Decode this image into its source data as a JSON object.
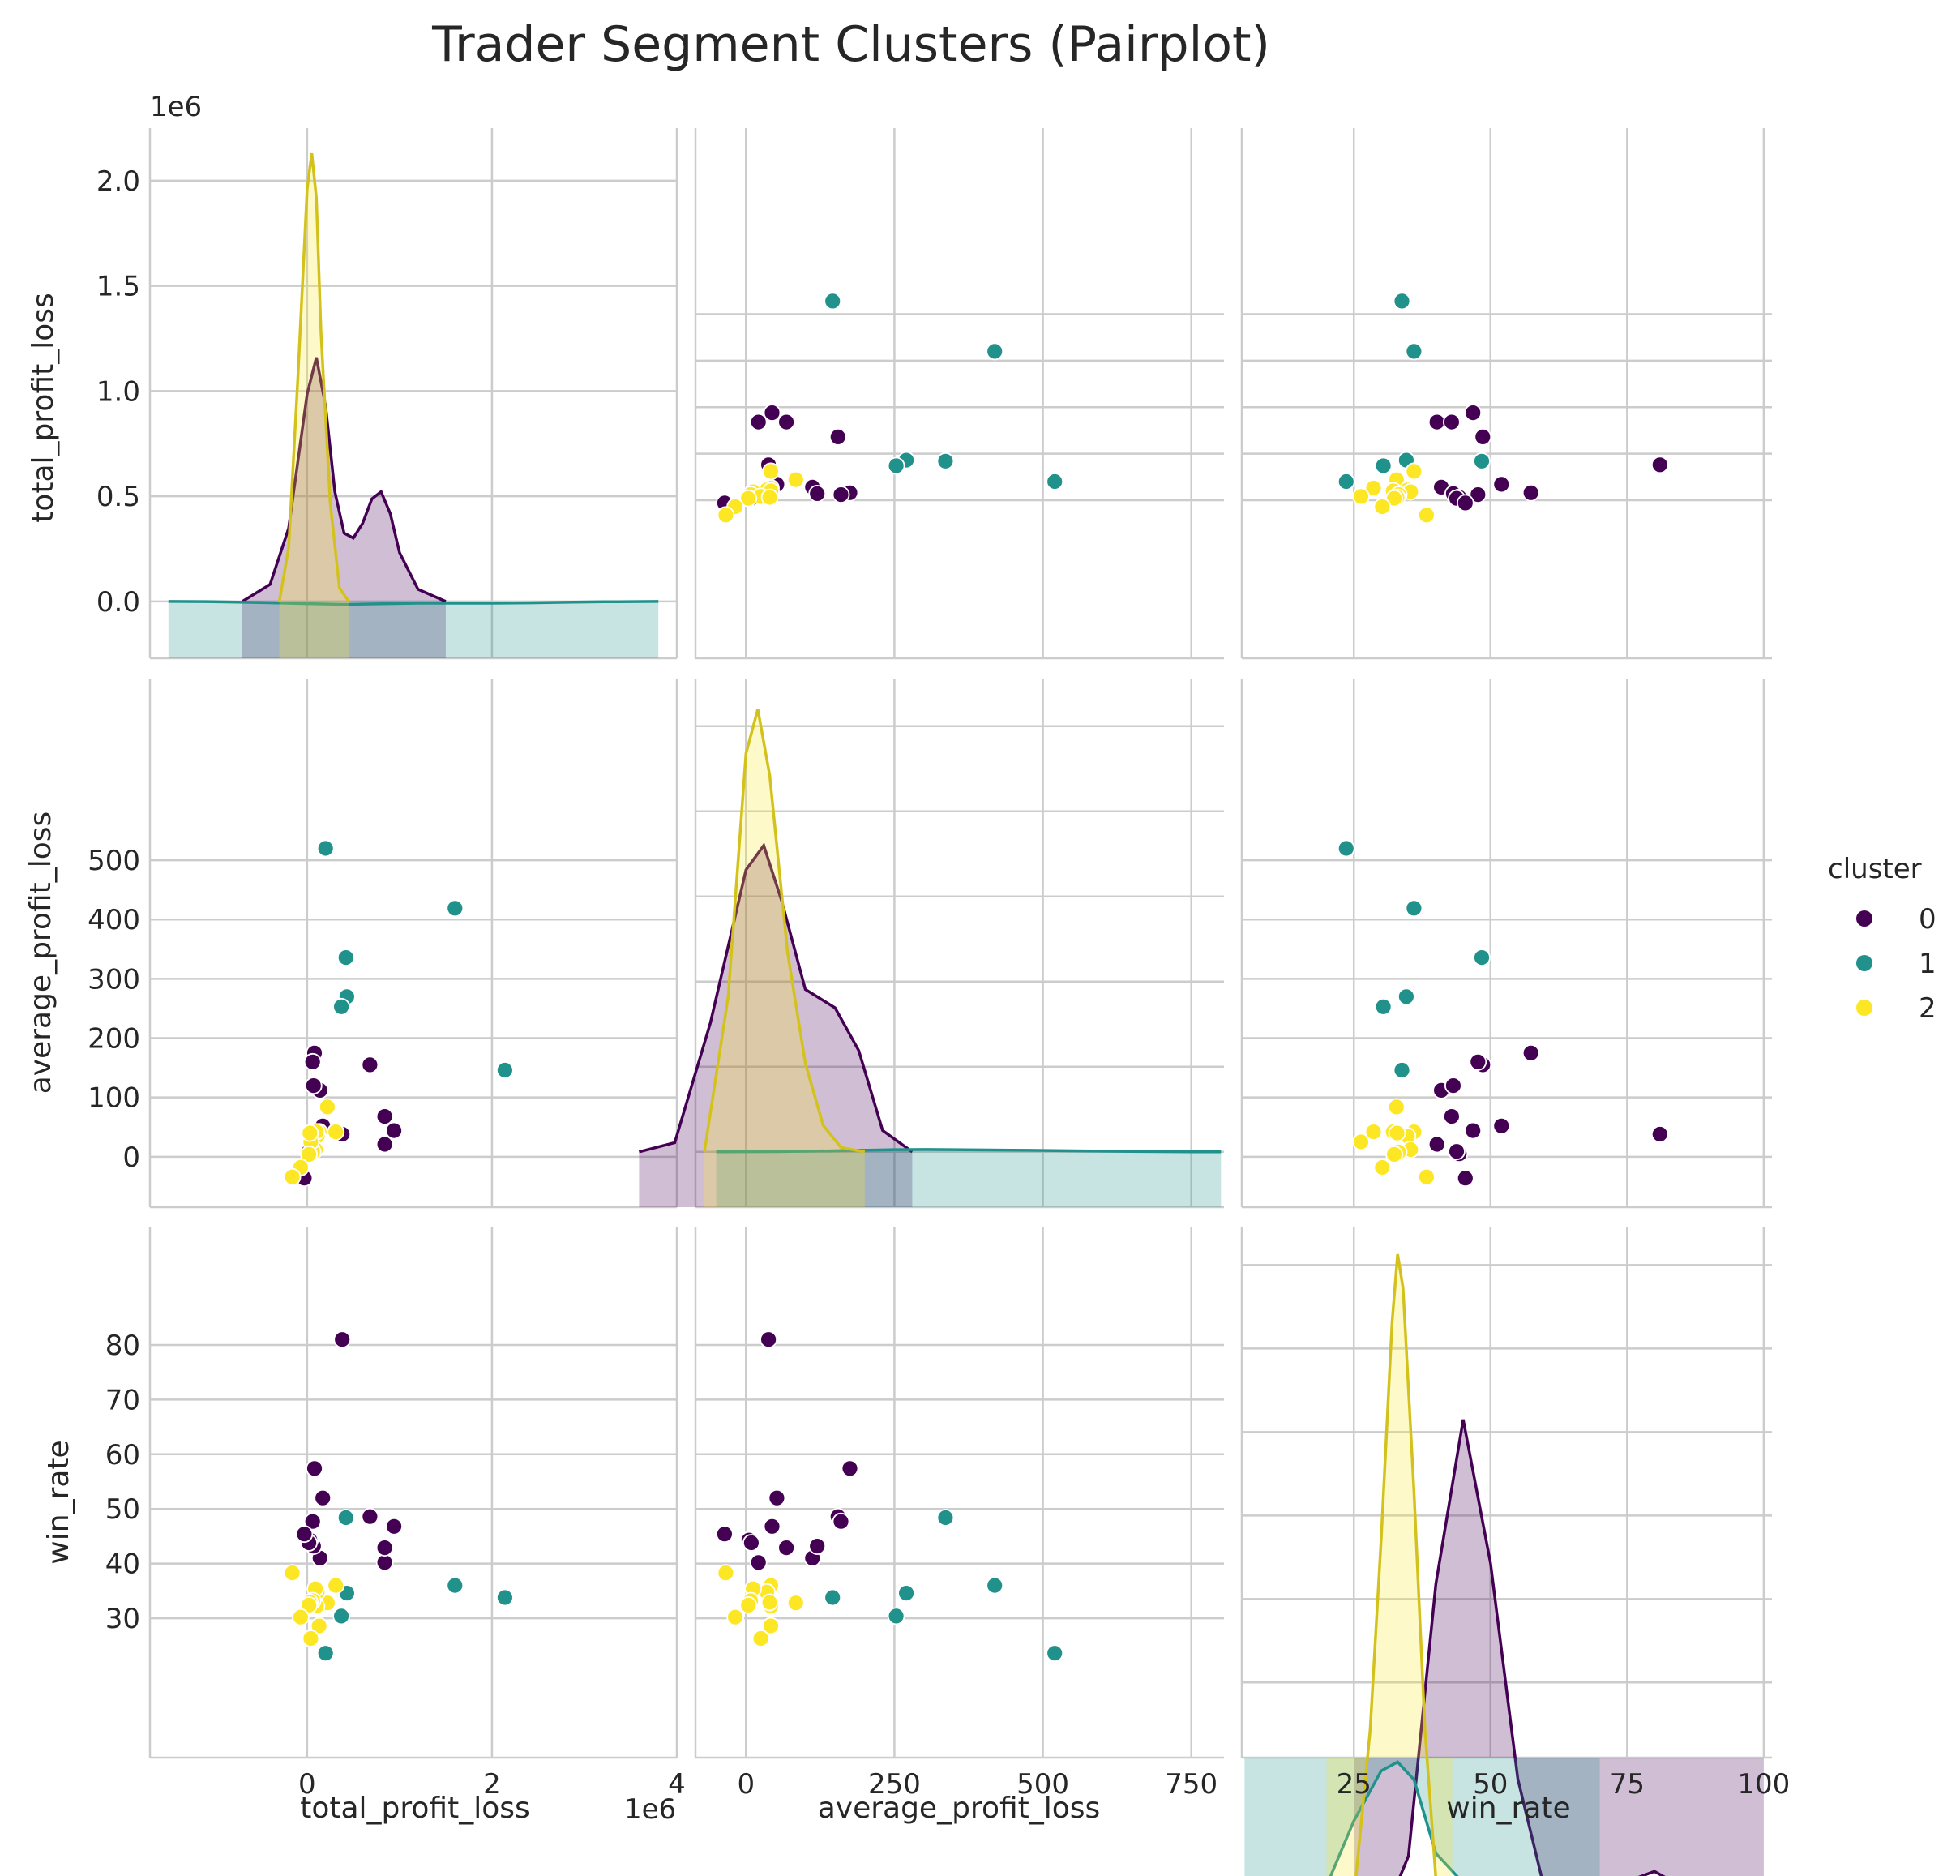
{
  "chart_data": {
    "type": "scatter",
    "subtype": "pairplot",
    "title": "Trader Segment Clusters (Pairplot)",
    "variables": [
      "total_profit_loss",
      "average_profit_loss",
      "win_rate"
    ],
    "axis_labels": {
      "total_profit_loss": "total_profit_loss",
      "average_profit_loss": "average_profit_loss",
      "win_rate": "win_rate"
    },
    "offset_text": "1e6",
    "ranges": {
      "total_profit_loss": [
        -1700000,
        4000000
      ],
      "average_profit_loss": [
        -85,
        805
      ],
      "win_rate": [
        4.5,
        101.5
      ]
    },
    "diag_y_ranges": {
      "total_profit_loss": [
        -270000,
        2250000
      ],
      "average_profit_loss": [
        -65,
        555
      ],
      "win_rate": [
        21,
        84.5
      ]
    },
    "ticks": {
      "total_profit_loss": {
        "values": [
          0,
          2000000,
          4000000
        ],
        "labels": [
          "0",
          "2",
          "4"
        ]
      },
      "total_profit_loss_y": {
        "values": [
          0,
          500000,
          1000000,
          1500000,
          2000000
        ],
        "labels": [
          "0.0",
          "0.5",
          "1.0",
          "1.5",
          "2.0"
        ]
      },
      "average_profit_loss": {
        "values": [
          0,
          250,
          500,
          750
        ],
        "labels": [
          "0",
          "250",
          "500",
          "750"
        ]
      },
      "average_profit_loss_y": {
        "values": [
          0,
          100,
          200,
          300,
          400,
          500
        ],
        "labels": [
          "0",
          "100",
          "200",
          "300",
          "400",
          "500"
        ]
      },
      "win_rate": {
        "values": [
          25,
          50,
          75,
          100
        ],
        "labels": [
          "25",
          "50",
          "75",
          "100"
        ]
      },
      "win_rate_y": {
        "values": [
          30,
          40,
          50,
          60,
          70,
          80
        ],
        "labels": [
          "30",
          "40",
          "50",
          "60",
          "70",
          "80"
        ]
      }
    },
    "grid": true,
    "legend": {
      "title": "cluster",
      "placement": "center-right"
    },
    "colors": {
      "0": "#440154",
      "1": "#21918c",
      "2": "#fde725"
    },
    "kde_line_colors": {
      "0": "#440154",
      "1": "#21918c",
      "2": "#d4c21c"
    },
    "series": [
      {
        "name": "0",
        "points": [
          {
            "total_profit_loss": 940000,
            "average_profit_loss": 44,
            "win_rate": 46.8
          },
          {
            "total_profit_loss": 840000,
            "average_profit_loss": 21,
            "win_rate": 40.2
          },
          {
            "total_profit_loss": 840000,
            "average_profit_loss": 68,
            "win_rate": 42.9
          },
          {
            "total_profit_loss": 680000,
            "average_profit_loss": 155,
            "win_rate": 48.6
          },
          {
            "total_profit_loss": 380000,
            "average_profit_loss": 38,
            "win_rate": 81.0
          },
          {
            "total_profit_loss": 170000,
            "average_profit_loss": 52,
            "win_rate": 52.0
          },
          {
            "total_profit_loss": 140000,
            "average_profit_loss": 112,
            "win_rate": 41.0
          },
          {
            "total_profit_loss": 80000,
            "average_profit_loss": 175,
            "win_rate": 57.4
          },
          {
            "total_profit_loss": 70000,
            "average_profit_loss": 120,
            "win_rate": 43.2
          },
          {
            "total_profit_loss": 60000,
            "average_profit_loss": 160,
            "win_rate": 47.7
          },
          {
            "total_profit_loss": 30000,
            "average_profit_loss": 5,
            "win_rate": 44.3
          },
          {
            "total_profit_loss": 20000,
            "average_profit_loss": 9,
            "win_rate": 43.8
          },
          {
            "total_profit_loss": -30000,
            "average_profit_loss": -36,
            "win_rate": 45.4
          }
        ]
      },
      {
        "name": "1",
        "points": [
          {
            "total_profit_loss": 2140000,
            "average_profit_loss": 146,
            "win_rate": 33.8
          },
          {
            "total_profit_loss": 1600000,
            "average_profit_loss": 419,
            "win_rate": 36.0
          },
          {
            "total_profit_loss": 430000,
            "average_profit_loss": 270,
            "win_rate": 34.6
          },
          {
            "total_profit_loss": 420000,
            "average_profit_loss": 336,
            "win_rate": 48.4
          },
          {
            "total_profit_loss": 370000,
            "average_profit_loss": 253,
            "win_rate": 30.4
          },
          {
            "total_profit_loss": 200000,
            "average_profit_loss": 520,
            "win_rate": 23.6
          }
        ]
      },
      {
        "name": "2",
        "points": [
          {
            "total_profit_loss": 310000,
            "average_profit_loss": 42,
            "win_rate": 36.0
          },
          {
            "total_profit_loss": 220000,
            "average_profit_loss": 84,
            "win_rate": 32.8
          },
          {
            "total_profit_loss": 130000,
            "average_profit_loss": 42,
            "win_rate": 28.6
          },
          {
            "total_profit_loss": 110000,
            "average_profit_loss": 35,
            "win_rate": 34.8
          },
          {
            "total_profit_loss": 100000,
            "average_profit_loss": 42,
            "win_rate": 32.2
          },
          {
            "total_profit_loss": 90000,
            "average_profit_loss": 12,
            "win_rate": 35.4
          },
          {
            "total_profit_loss": 60000,
            "average_profit_loss": 8,
            "win_rate": 33.2
          },
          {
            "total_profit_loss": 40000,
            "average_profit_loss": 25,
            "win_rate": 26.3
          },
          {
            "total_profit_loss": 30000,
            "average_profit_loss": 40,
            "win_rate": 32.9
          },
          {
            "total_profit_loss": 20000,
            "average_profit_loss": 4,
            "win_rate": 32.4
          },
          {
            "total_profit_loss": -70000,
            "average_profit_loss": -18,
            "win_rate": 30.2
          },
          {
            "total_profit_loss": -160000,
            "average_profit_loss": -34,
            "win_rate": 38.3
          }
        ]
      }
    ],
    "kde": {
      "total_profit_loss": [
        {
          "name": "0",
          "x": [
            -700000,
            -400000,
            -200000,
            0,
            100000,
            200000,
            300000,
            400000,
            500000,
            600000,
            700000,
            800000,
            900000,
            1000000,
            1200000,
            1500000
          ],
          "y": [
            0,
            0.07,
            0.3,
            0.85,
            1.0,
            0.8,
            0.45,
            0.28,
            0.26,
            0.32,
            0.42,
            0.45,
            0.36,
            0.2,
            0.05,
            0
          ]
        },
        {
          "name": "1",
          "x": [
            -1500000,
            -1000000,
            -500000,
            0,
            400000,
            800000,
            1200000,
            1600000,
            2000000,
            2400000,
            2800000,
            3200000,
            3800000
          ],
          "y": [
            0,
            0.015,
            0.06,
            0.13,
            0.17,
            0.14,
            0.1,
            0.1,
            0.1,
            0.08,
            0.045,
            0.02,
            0
          ]
        },
        {
          "name": "2",
          "x": [
            -300000,
            -200000,
            -100000,
            0,
            50000,
            100000,
            150000,
            250000,
            350000,
            450000
          ],
          "y": [
            0,
            0.12,
            0.5,
            0.92,
            1.0,
            0.9,
            0.6,
            0.22,
            0.03,
            0
          ]
        }
      ],
      "average_profit_loss": [
        {
          "name": "0",
          "x": [
            -180,
            -120,
            -60,
            0,
            30,
            60,
            100,
            150,
            190,
            230,
            280
          ],
          "y": [
            0,
            0.03,
            0.42,
            0.92,
            1.0,
            0.82,
            0.53,
            0.47,
            0.33,
            0.07,
            0
          ]
        },
        {
          "name": "1",
          "x": [
            -50,
            50,
            150,
            250,
            300,
            350,
            450,
            550,
            650,
            750,
            800
          ],
          "y": [
            0,
            0.02,
            0.12,
            0.25,
            0.27,
            0.25,
            0.2,
            0.12,
            0.04,
            0.005,
            0
          ]
        },
        {
          "name": "2",
          "x": [
            -70,
            -30,
            0,
            20,
            40,
            70,
            100,
            130,
            160,
            200
          ],
          "y": [
            0,
            0.35,
            0.9,
            1.0,
            0.85,
            0.45,
            0.2,
            0.06,
            0.01,
            0
          ]
        }
      ],
      "win_rate": [
        {
          "name": "0",
          "x": [
            25,
            30,
            35,
            40,
            45,
            50,
            55,
            60,
            65,
            70,
            75,
            80,
            85,
            90,
            95,
            100
          ],
          "y": [
            0,
            0.02,
            0.15,
            0.68,
            1.0,
            0.72,
            0.3,
            0.08,
            0.03,
            0.05,
            0.1,
            0.12,
            0.09,
            0.04,
            0.01,
            0
          ]
        },
        {
          "name": "1",
          "x": [
            5,
            10,
            15,
            20,
            25,
            30,
            33,
            36,
            40,
            45,
            50,
            55,
            60,
            65,
            70
          ],
          "y": [
            0,
            0.01,
            0.04,
            0.16,
            0.38,
            0.55,
            0.58,
            0.52,
            0.27,
            0.17,
            0.12,
            0.05,
            0.01,
            0.003,
            0
          ]
        },
        {
          "name": "2",
          "x": [
            20,
            25,
            28,
            30,
            32,
            33,
            34,
            36,
            38,
            40,
            43
          ],
          "y": [
            0,
            0.05,
            0.3,
            0.58,
            0.9,
            1.0,
            0.95,
            0.65,
            0.3,
            0.08,
            0
          ]
        }
      ]
    },
    "kde_peaks": {
      "total_profit_loss": {
        "0": 1160000,
        "1": -80000,
        "2": 2130000
      },
      "average_profit_loss": {
        "0": 360,
        "1": 10,
        "2": 520
      },
      "win_rate": {
        "0": 61.5,
        "1": 35.3,
        "2": 81.3
      }
    }
  }
}
